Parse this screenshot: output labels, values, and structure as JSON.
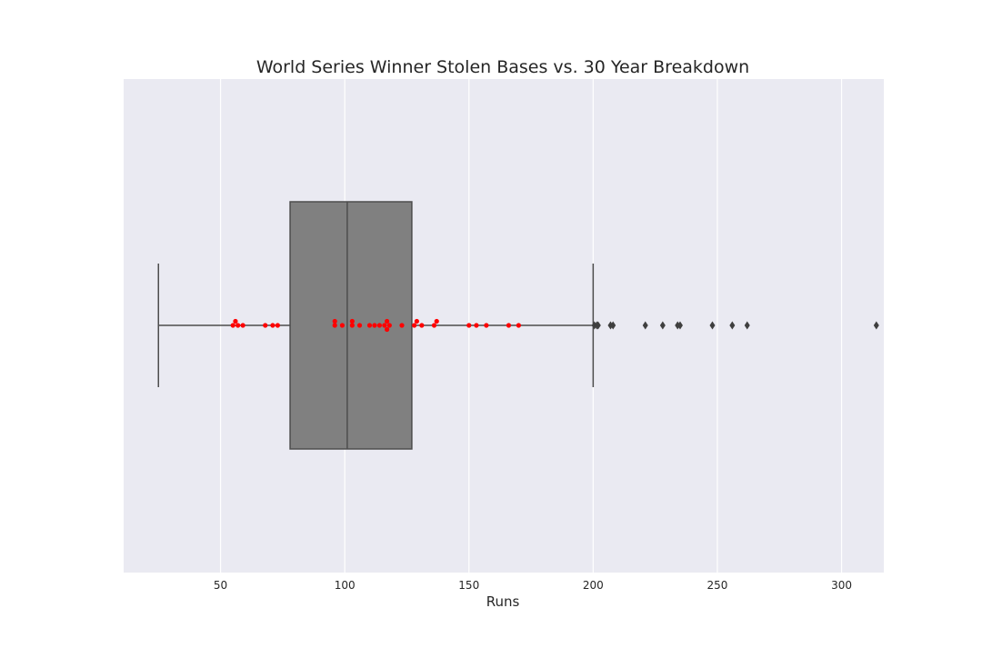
{
  "chart_data": {
    "type": "box",
    "title": "World Series Winner Stolen Bases vs. 30 Year Breakdown",
    "xlabel": "Runs",
    "ylabel": "",
    "xlim": [
      11,
      317
    ],
    "xticks": [
      50,
      100,
      150,
      200,
      250,
      300
    ],
    "grid": true,
    "orientation": "horizontal",
    "box": {
      "whisker_low": 25,
      "q1": 78,
      "median": 101,
      "q3": 127,
      "whisker_high": 200
    },
    "outliers": [
      200.5,
      201.5,
      202,
      207,
      208,
      221,
      228,
      234,
      235,
      248,
      256,
      262,
      314
    ],
    "points": {
      "name": "",
      "values": [
        55,
        56,
        57,
        59,
        68,
        71,
        73,
        96,
        96,
        99,
        103,
        103,
        106,
        110,
        112,
        114,
        116,
        117,
        117,
        118,
        123,
        128,
        129,
        131,
        136,
        137,
        150,
        153,
        157,
        166,
        170
      ],
      "rows": [
        0,
        1,
        0,
        0,
        0,
        0,
        0,
        1,
        0,
        0,
        1,
        0,
        0,
        0,
        0,
        0,
        0,
        1,
        -1,
        0,
        0,
        0,
        1,
        0,
        0,
        1,
        0,
        0,
        0,
        0,
        0
      ]
    },
    "colors": {
      "background": "#EAEAF2",
      "grid": "#FFFFFF",
      "box_fill": "#808080",
      "box_line": "#4D4D4D",
      "points": "#FF0000",
      "outliers": "#3F3F3F",
      "text": "#262626"
    }
  }
}
